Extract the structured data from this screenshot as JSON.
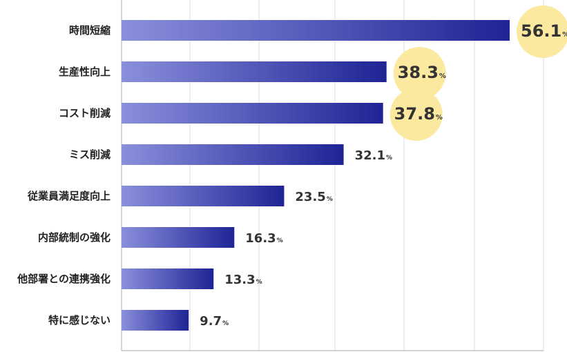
{
  "chart_data": {
    "type": "bar",
    "orientation": "horizontal",
    "categories": [
      "時間短縮",
      "生産性向上",
      "コスト削減",
      "ミス削減",
      "従業員満足度向上",
      "内部統制の強化",
      "他部署との連携強化",
      "特に感じない"
    ],
    "values": [
      56.1,
      38.3,
      37.8,
      32.1,
      23.5,
      16.3,
      13.3,
      9.7
    ],
    "value_labels": [
      "56.1",
      "38.3",
      "37.8",
      "32.1",
      "23.5",
      "16.3",
      "13.3",
      "9.7"
    ],
    "unit": "%",
    "highlighted": [
      true,
      true,
      true,
      false,
      false,
      false,
      false,
      false
    ],
    "xlim": [
      0,
      56.1
    ],
    "grid": true,
    "colors": {
      "bar_start": "#8a8fdc",
      "bar_end": "#1f2395",
      "highlight": "#fbe9a0",
      "grid": "#dddddd",
      "axis": "#aaaaaa"
    }
  }
}
